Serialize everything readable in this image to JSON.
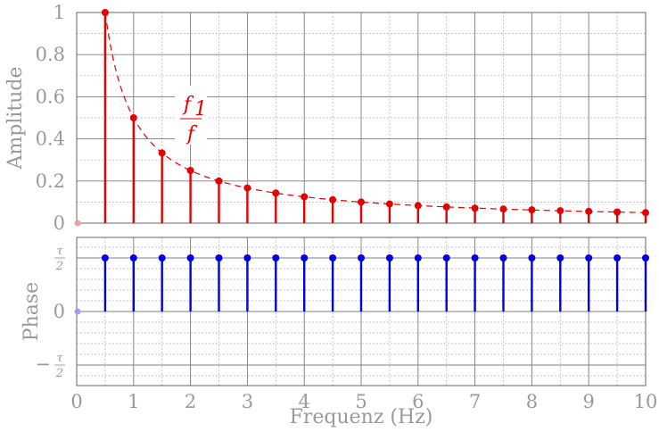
{
  "chart_data": [
    {
      "type": "stem",
      "title": "",
      "ylabel": "Amplitude",
      "xlim": [
        0,
        10
      ],
      "ylim": [
        0,
        1
      ],
      "grid": true,
      "color": "#e60000",
      "x": [
        0.5,
        1,
        1.5,
        2,
        2.5,
        3,
        3.5,
        4,
        4.5,
        5,
        5.5,
        6,
        6.5,
        7,
        7.5,
        8,
        8.5,
        9,
        9.5,
        10
      ],
      "values": [
        1,
        0.5,
        0.333,
        0.25,
        0.2,
        0.167,
        0.143,
        0.125,
        0.111,
        0.1,
        0.091,
        0.083,
        0.077,
        0.071,
        0.067,
        0.063,
        0.059,
        0.056,
        0.053,
        0.05
      ],
      "x_ticks": [
        "0",
        "1",
        "2",
        "3",
        "4",
        "5",
        "6",
        "7",
        "8",
        "9",
        "10"
      ],
      "y_ticks": [
        "0",
        "0.2",
        "0.4",
        "0.6",
        "0.8",
        "1"
      ],
      "annotation": {
        "text_num": "f",
        "text_sub": "1",
        "text_den": "f"
      }
    },
    {
      "type": "stem",
      "title": "",
      "ylabel": "Phase",
      "xlabel": "Frequenz (Hz)",
      "xlim": [
        0,
        10
      ],
      "ylim": [
        -0.5,
        0.5
      ],
      "grid": true,
      "color": "#0000e6",
      "x": [
        0.5,
        1,
        1.5,
        2,
        2.5,
        3,
        3.5,
        4,
        4.5,
        5,
        5.5,
        6,
        6.5,
        7,
        7.5,
        8,
        8.5,
        9,
        9.5,
        10
      ],
      "values": [
        0.5,
        0.5,
        0.5,
        0.5,
        0.5,
        0.5,
        0.5,
        0.5,
        0.5,
        0.5,
        0.5,
        0.5,
        0.5,
        0.5,
        0.5,
        0.5,
        0.5,
        0.5,
        0.5,
        0.5
      ],
      "x_ticks": [
        "0",
        "1",
        "2",
        "3",
        "4",
        "5",
        "6",
        "7",
        "8",
        "9",
        "10"
      ],
      "y_ticks": [
        {
          "sign": "",
          "num": "τ",
          "den": "2"
        },
        {
          "sign": "",
          "num": "",
          "den": "",
          "plain": "0"
        },
        {
          "sign": "−",
          "num": "τ",
          "den": "2"
        }
      ]
    }
  ]
}
